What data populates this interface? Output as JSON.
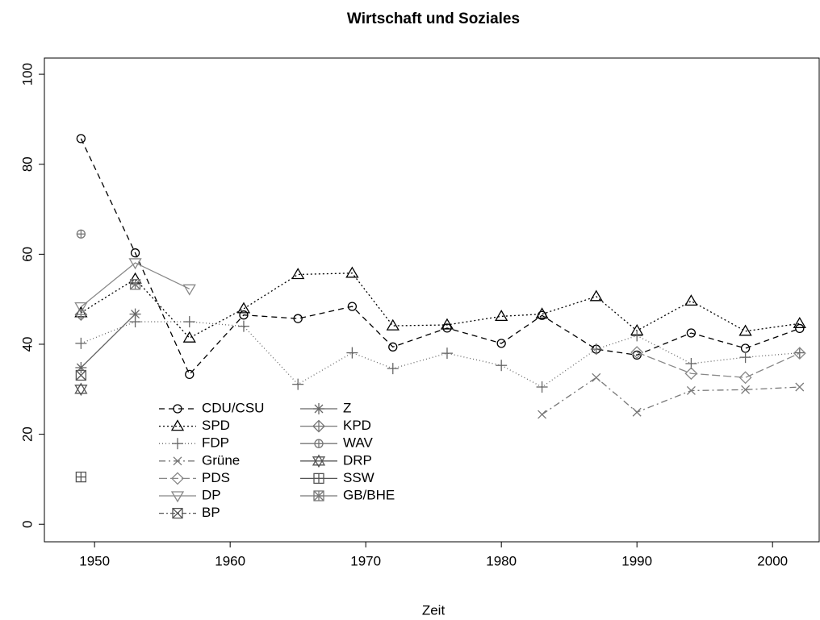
{
  "chart_data": {
    "type": "line",
    "title": "Wirtschaft und Soziales",
    "x_label": "Zeit",
    "x": [
      1949,
      1953,
      1957,
      1961,
      1965,
      1969,
      1972,
      1976,
      1980,
      1983,
      1987,
      1990,
      1994,
      1998,
      2002
    ],
    "xlim": [
      1946.3,
      2003.5
    ],
    "xticks": [
      1950,
      1960,
      1970,
      1980,
      1990,
      2000
    ],
    "ylim": [
      -3.9,
      103.6
    ],
    "yticks": [
      0,
      20,
      40,
      60,
      80,
      100
    ],
    "series": [
      {
        "name": "CDU/CSU",
        "color": "#000000",
        "dash": "7,5",
        "marker": "circle",
        "values": [
          85.7,
          60.3,
          33.3,
          46.5,
          45.7,
          48.4,
          39.4,
          43.6,
          40.2,
          46.4,
          38.9,
          37.6,
          42.5,
          39.1,
          43.5
        ]
      },
      {
        "name": "SPD",
        "color": "#000000",
        "dash": "2,3",
        "marker": "triangle",
        "values": [
          47,
          54.5,
          41.4,
          47.9,
          55.5,
          55.8,
          44.1,
          44.3,
          46.2,
          46.7,
          50.6,
          43,
          49.6,
          42.9,
          44.6
        ]
      },
      {
        "name": "FDP",
        "color": "#666666",
        "dash": "1,3",
        "marker": "plus",
        "values": [
          40.2,
          45,
          45,
          44,
          31.1,
          38.1,
          34.6,
          38,
          35.3,
          30.5,
          38.9,
          41.9,
          35.7,
          37.1,
          38.1
        ]
      },
      {
        "name": "Grüne",
        "color": "#777777",
        "dash": "8,4,2,4",
        "marker": "x",
        "values": [
          null,
          null,
          null,
          null,
          null,
          null,
          null,
          null,
          null,
          24.4,
          32.6,
          24.9,
          29.7,
          29.9,
          30.5
        ]
      },
      {
        "name": "PDS",
        "color": "#888888",
        "dash": "10,4",
        "marker": "diamond",
        "values": [
          null,
          null,
          null,
          null,
          null,
          null,
          null,
          null,
          null,
          null,
          null,
          38.2,
          33.5,
          32.6,
          38
        ]
      },
      {
        "name": "DP",
        "color": "#888888",
        "dash": "solid",
        "marker": "triangle-down",
        "values": [
          48.3,
          58.1,
          52.3,
          null,
          null,
          null,
          null,
          null,
          null,
          null,
          null,
          null,
          null,
          null,
          null
        ]
      },
      {
        "name": "BP",
        "color": "#555555",
        "dash": "6,3,2,3",
        "marker": "square-x",
        "values": [
          33.1,
          null,
          null,
          null,
          null,
          null,
          null,
          null,
          null,
          null,
          null,
          null,
          null,
          null,
          null
        ]
      },
      {
        "name": "Z",
        "color": "#666666",
        "dash": "solid",
        "marker": "asterisk",
        "values": [
          34.8,
          46.7,
          null,
          null,
          null,
          null,
          null,
          null,
          null,
          null,
          null,
          null,
          null,
          null,
          null
        ]
      },
      {
        "name": "KPD",
        "color": "#777777",
        "dash": "solid",
        "marker": "diamond-plus",
        "values": [
          46.6,
          null,
          null,
          null,
          null,
          null,
          null,
          null,
          null,
          null,
          null,
          null,
          null,
          null,
          null
        ]
      },
      {
        "name": "WAV",
        "color": "#777777",
        "dash": "solid",
        "marker": "circle-plus",
        "values": [
          64.5,
          null,
          null,
          null,
          null,
          null,
          null,
          null,
          null,
          null,
          null,
          null,
          null,
          null,
          null
        ]
      },
      {
        "name": "DRP",
        "color": "#555555",
        "dash": "solid",
        "marker": "star-of-david",
        "values": [
          30,
          null,
          null,
          null,
          null,
          null,
          null,
          null,
          null,
          null,
          null,
          null,
          null,
          null,
          null
        ]
      },
      {
        "name": "SSW",
        "color": "#555555",
        "dash": "solid",
        "marker": "square-plus",
        "values": [
          10.5,
          null,
          null,
          null,
          null,
          null,
          null,
          null,
          null,
          null,
          null,
          null,
          null,
          null,
          null
        ]
      },
      {
        "name": "GB/BHE",
        "color": "#777777",
        "dash": "solid",
        "marker": "square-star",
        "values": [
          null,
          53.3,
          null,
          null,
          null,
          null,
          null,
          null,
          null,
          null,
          null,
          null,
          null,
          null,
          null
        ]
      }
    ]
  }
}
